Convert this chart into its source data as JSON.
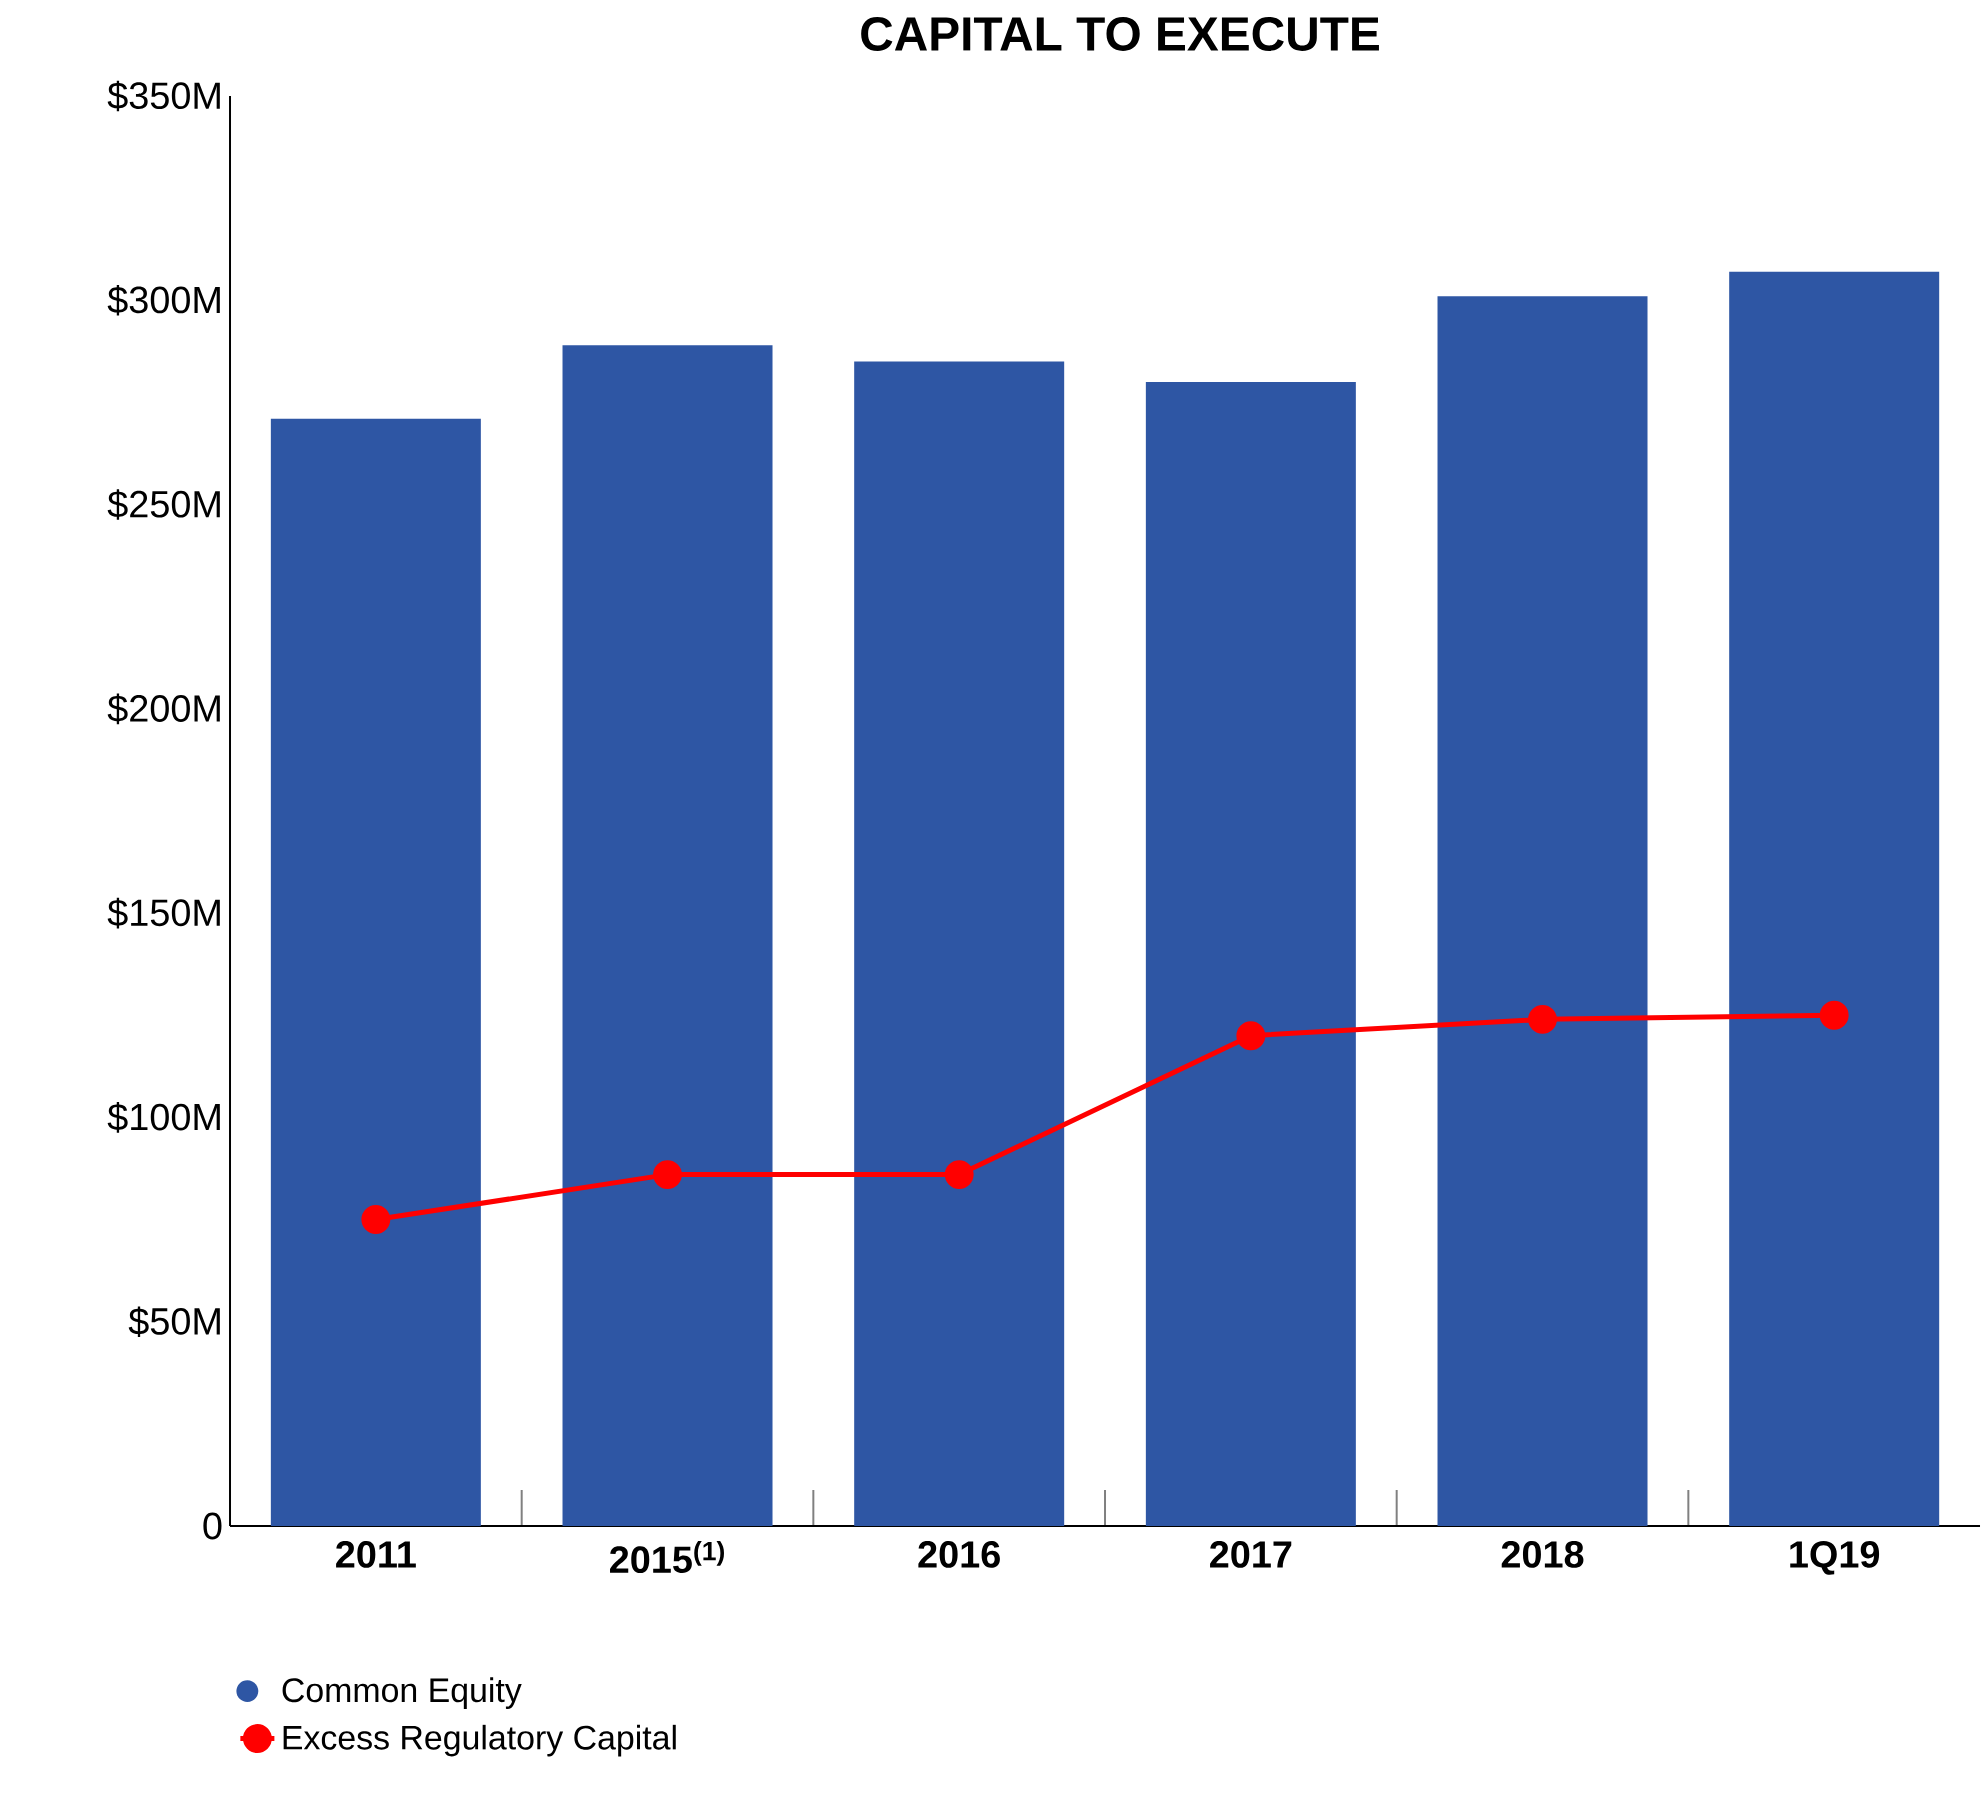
{
  "chart_data": {
    "type": "bar",
    "title": "CAPITAL TO EXECUTE",
    "categories": [
      "2011",
      "2015$^{(1)}$",
      "2016",
      "2017",
      "2018",
      "1Q19"
    ],
    "series": [
      {
        "name": "Common Equity",
        "color": "#2e56a4",
        "values": [
          271,
          289,
          285,
          280,
          301,
          307
        ]
      },
      {
        "name": "Excess Regulatory Capital",
        "type": "line",
        "color": "#ff0000",
        "values": [
          75,
          86,
          86,
          120,
          124,
          125
        ]
      }
    ],
    "ylim": [
      0,
      350
    ],
    "yticks": [
      {
        "value": 0,
        "label": "0"
      },
      {
        "value": 50,
        "label": "$50M"
      },
      {
        "value": 100,
        "label": "$100M"
      },
      {
        "value": 150,
        "label": "$150M"
      },
      {
        "value": 200,
        "label": "$200M"
      },
      {
        "value": 250,
        "label": "$250M"
      },
      {
        "value": 300,
        "label": "$300M"
      },
      {
        "value": 350,
        "label": "$350M"
      }
    ],
    "marker": "circle",
    "legend": "bottom",
    "grid": false
  }
}
